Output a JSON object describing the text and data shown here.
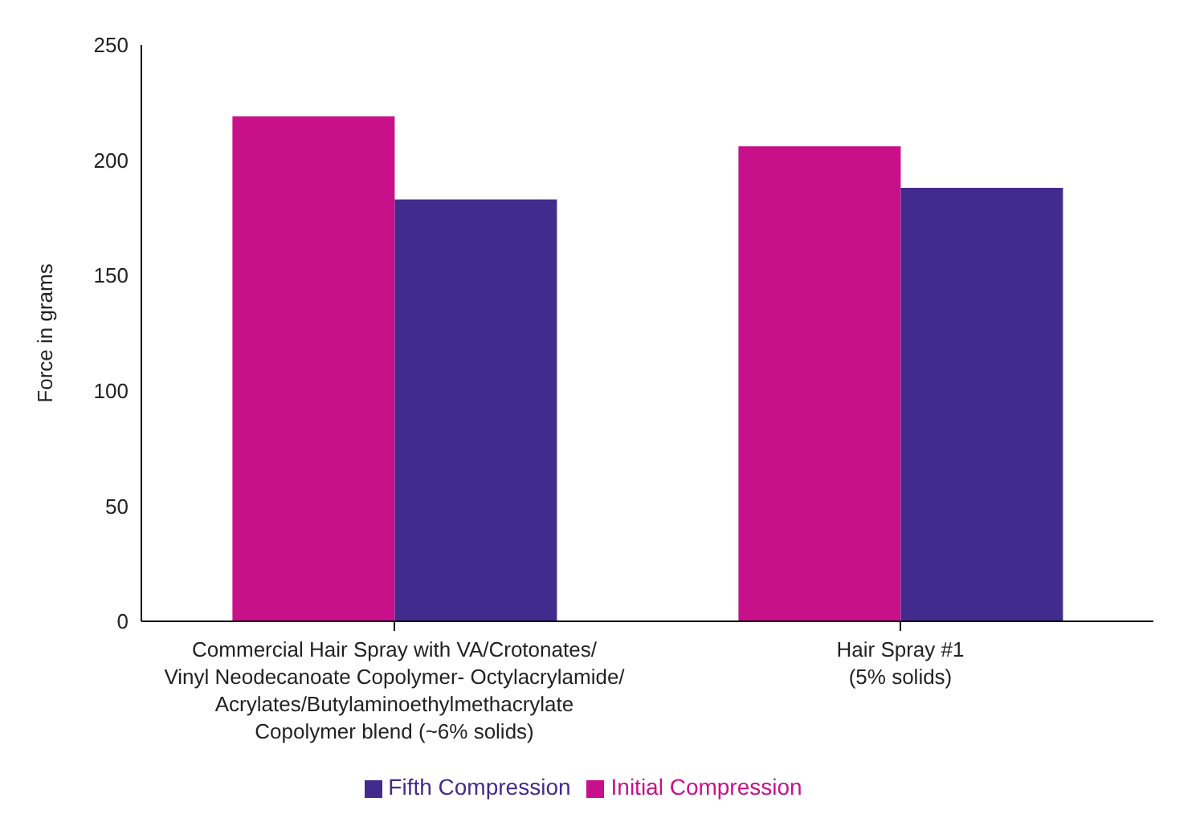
{
  "chart_data": {
    "type": "bar",
    "ylabel": "Force in grams",
    "categories": [
      "Commercial Hair Spray with VA/Crotonates/\nVinyl Neodecanoate Copolymer- Octylacrylamide/\nAcrylates/Butylaminoethylmethacrylate\nCopolymer blend (~6% solids)",
      "Hair Spray #1\n(5% solids)"
    ],
    "series": [
      {
        "name": "Initial Compression",
        "color": "#c8108a",
        "values": [
          219,
          206
        ]
      },
      {
        "name": "Fifth Compression",
        "color": "#432b8e",
        "values": [
          183,
          188
        ]
      }
    ],
    "ylim": [
      0,
      250
    ],
    "yticks": [
      0,
      50,
      100,
      150,
      200,
      250
    ],
    "legend": "bottom"
  }
}
